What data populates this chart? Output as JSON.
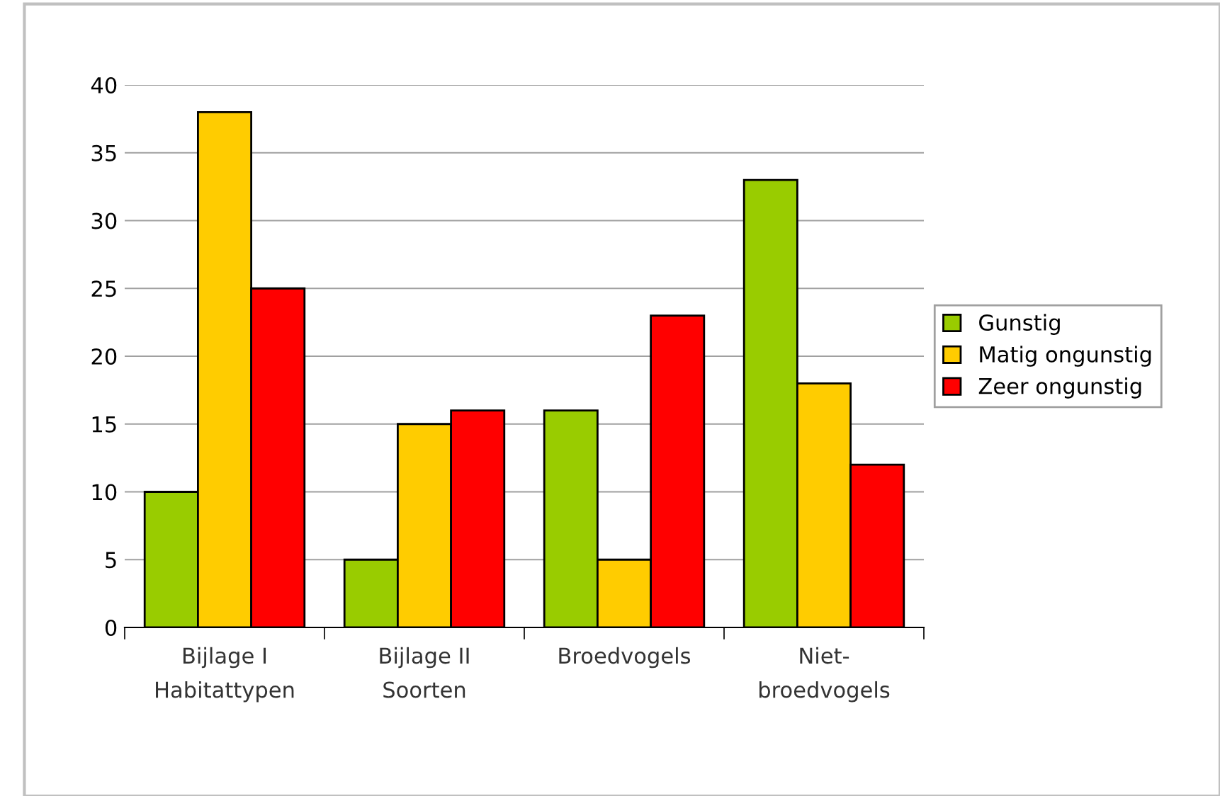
{
  "chart_data": {
    "type": "bar",
    "categories": [
      "Bijlage I\nHabitattypen",
      "Bijlage II\nSoorten",
      "Broedvogels",
      "Niet-\nbroedvogels"
    ],
    "series": [
      {
        "name": "Gunstig",
        "color": "#99cc00",
        "values": [
          10,
          5,
          16,
          33
        ]
      },
      {
        "name": "Matig ongunstig",
        "color": "#ffcc00",
        "values": [
          38,
          15,
          5,
          18
        ]
      },
      {
        "name": "Zeer ongunstig",
        "color": "#ff0000",
        "values": [
          25,
          16,
          23,
          12
        ]
      }
    ],
    "ylim": [
      0,
      40
    ],
    "yticks": [
      0,
      5,
      10,
      15,
      20,
      25,
      30,
      35,
      40
    ],
    "grid": "y",
    "legend": "right"
  }
}
